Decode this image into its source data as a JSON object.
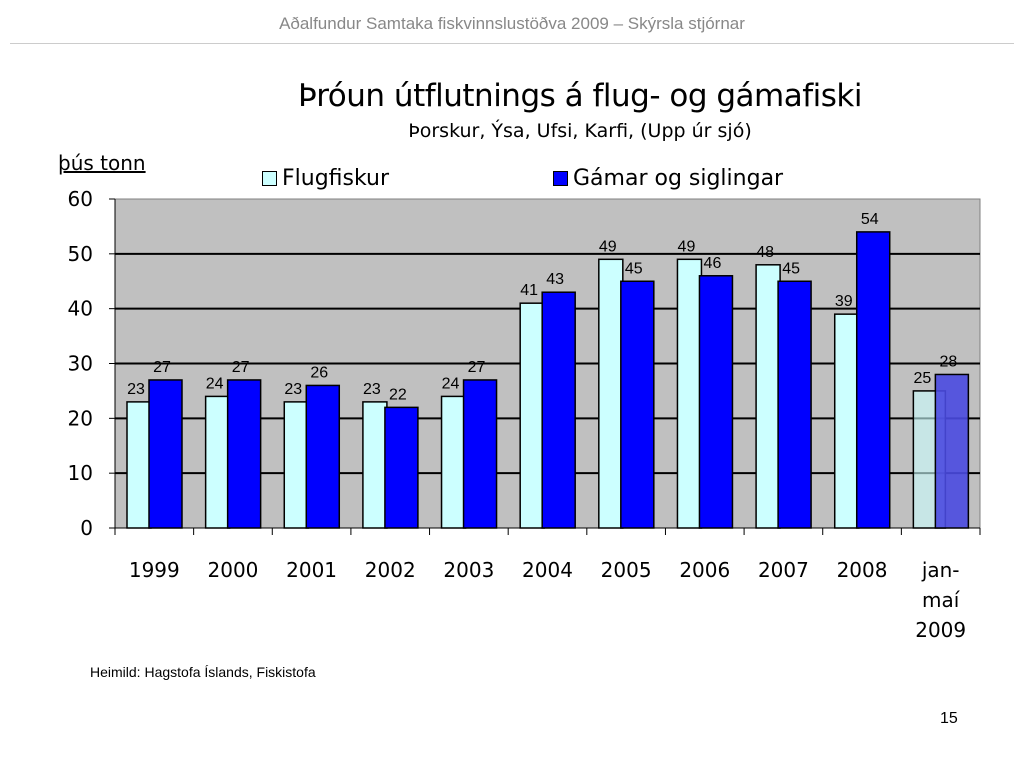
{
  "header": "Aðalfundur Samtaka fiskvinnslustöðva 2009 – Skýrsla stjórnar",
  "source": "Heimild: Hagstofa Íslands, Fiskistofa",
  "page_number": "15",
  "chart_data": {
    "type": "bar",
    "title": "Þróun útflutnings á flug- og gámafiski",
    "subtitle": "Þorskur, Ýsa, Ufsi, Karfi,  (Upp úr sjó)",
    "ylabel": "þús tonn",
    "ylim": [
      0,
      60
    ],
    "yticks": [
      0,
      10,
      20,
      30,
      40,
      50,
      60
    ],
    "grid": true,
    "legend": "top",
    "categories": [
      [
        "1999"
      ],
      [
        "2000"
      ],
      [
        "2001"
      ],
      [
        "2002"
      ],
      [
        "2003"
      ],
      [
        "2004"
      ],
      [
        "2005"
      ],
      [
        "2006"
      ],
      [
        "2007"
      ],
      [
        "2008"
      ],
      [
        "jan-",
        "maí",
        "2009"
      ]
    ],
    "series": [
      {
        "name": "Flugfiskur",
        "color": "#ccffff",
        "values": [
          23,
          24,
          23,
          23,
          24,
          41,
          49,
          49,
          48,
          39,
          25
        ]
      },
      {
        "name": "Gámar og siglingar",
        "color": "#0000ff",
        "values": [
          27,
          27,
          26,
          22,
          27,
          43,
          45,
          46,
          45,
          54,
          28
        ]
      }
    ],
    "plot_background": "#c0c0c0"
  }
}
